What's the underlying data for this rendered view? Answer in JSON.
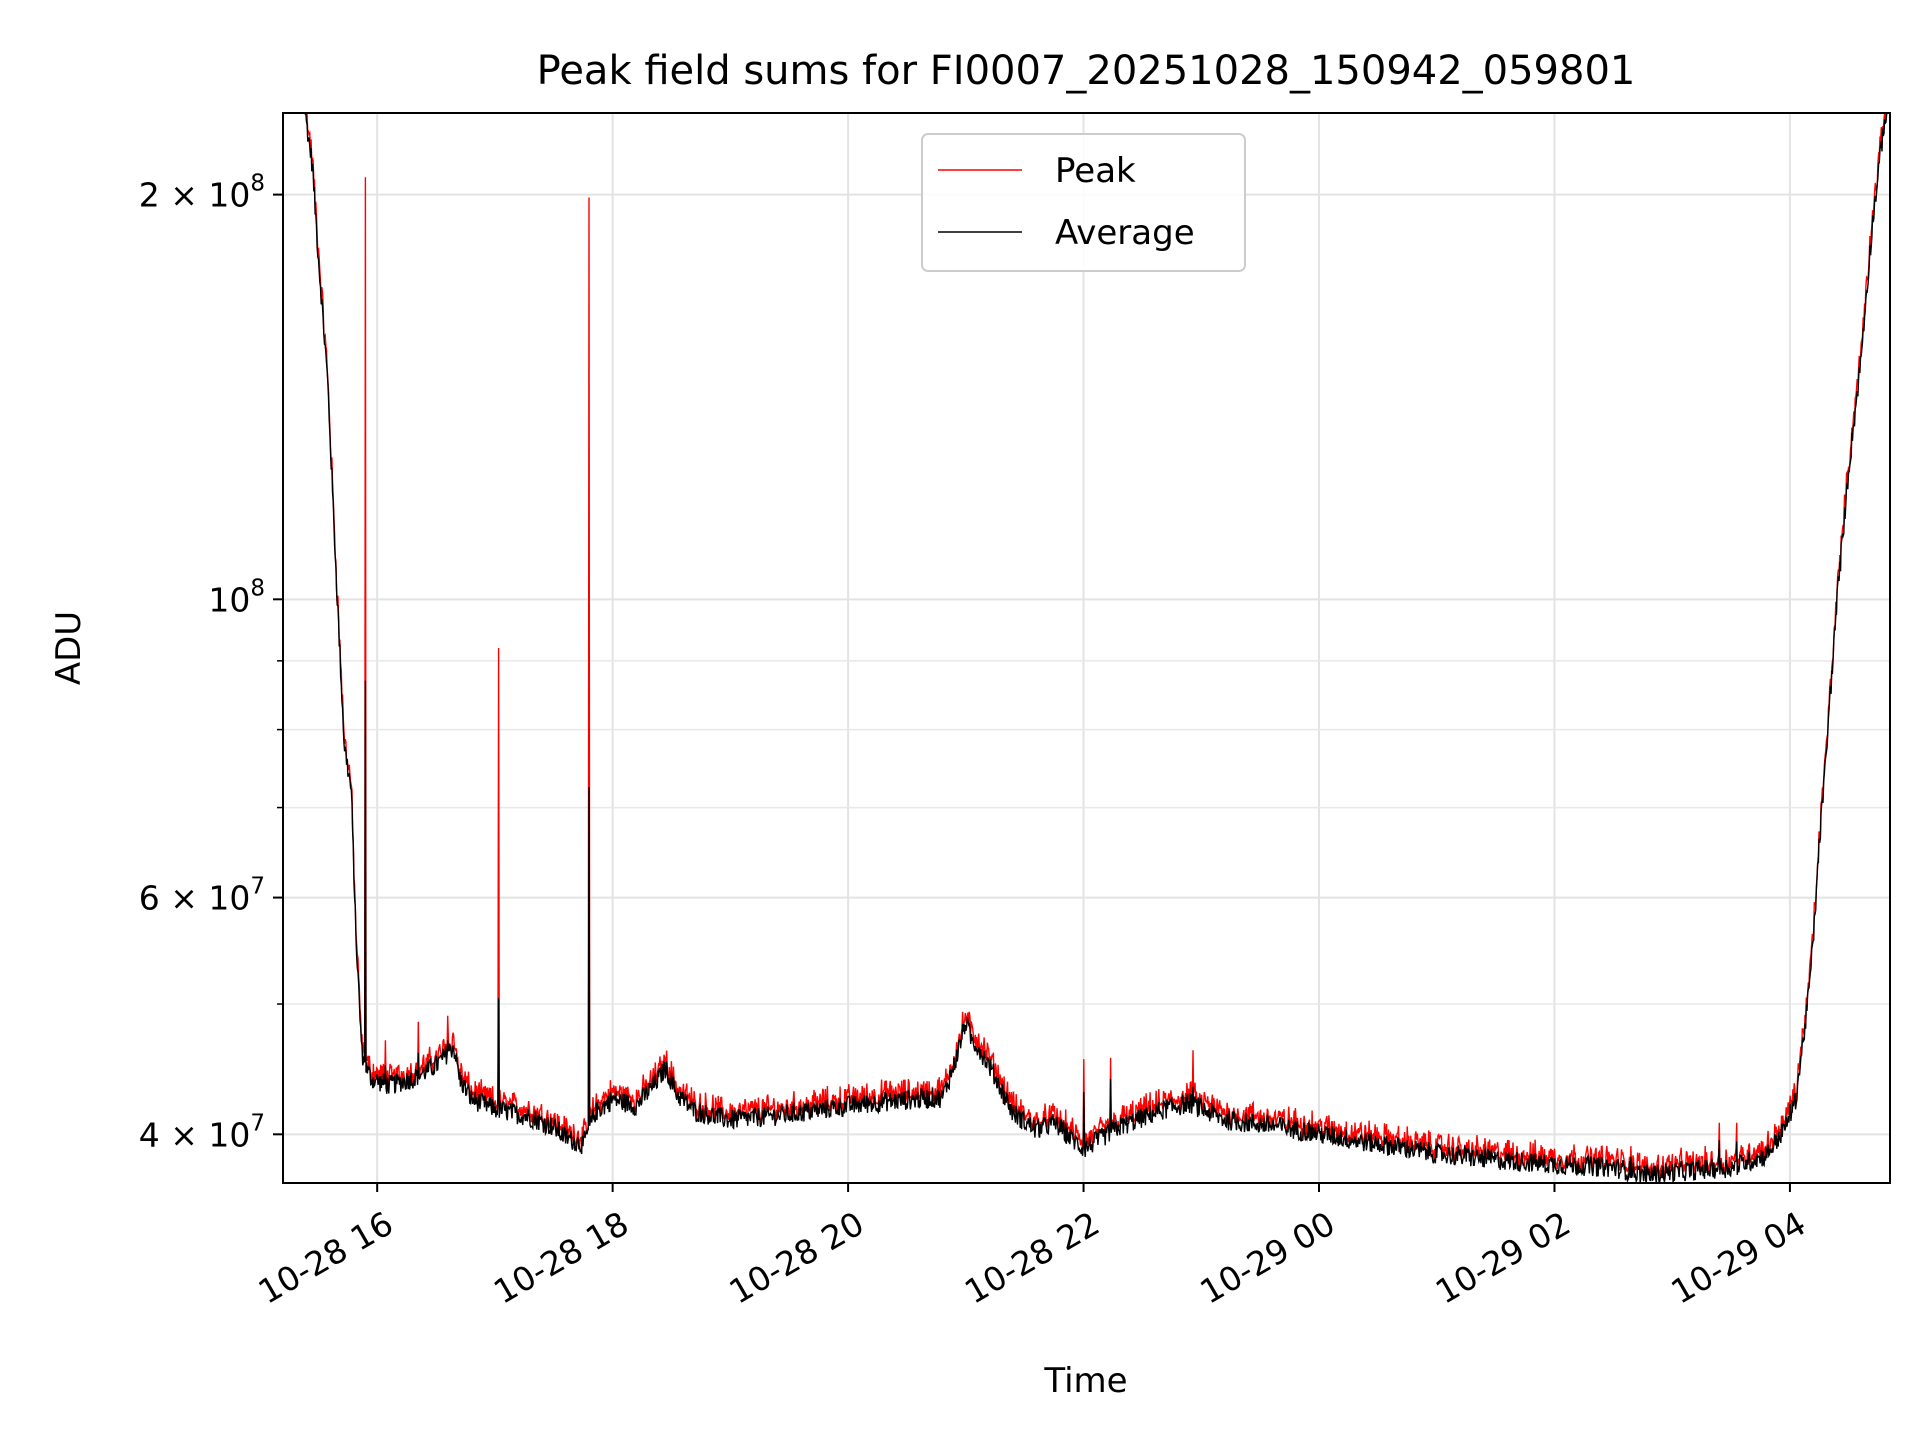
{
  "chart_data": {
    "type": "line",
    "title": "Peak field sums for FI0007_20251028_150942_059801",
    "xlabel": "Time",
    "ylabel": "ADU",
    "yscale": "log",
    "grid": true,
    "legend_position": "upper-center",
    "xlim_hours": [
      15.2,
      28.85
    ],
    "ylim": [
      36800000,
      230000000
    ],
    "x_ticks": [
      {
        "hour": 16,
        "label": "10-28 16"
      },
      {
        "hour": 18,
        "label": "10-28 18"
      },
      {
        "hour": 20,
        "label": "10-28 20"
      },
      {
        "hour": 22,
        "label": "10-28 22"
      },
      {
        "hour": 24,
        "label": "10-29 00"
      },
      {
        "hour": 26,
        "label": "10-29 02"
      },
      {
        "hour": 28,
        "label": "10-29 04"
      }
    ],
    "y_ticks": [
      {
        "value": 40000000,
        "base": "4 × 10",
        "exp": "7"
      },
      {
        "value": 60000000,
        "base": "6 × 10",
        "exp": "7"
      },
      {
        "value": 100000000,
        "base": "10",
        "exp": "8"
      },
      {
        "value": 200000000,
        "base": "2 × 10",
        "exp": "8"
      }
    ],
    "y_minor_ticks": [
      50000000,
      70000000,
      80000000,
      90000000
    ],
    "series": [
      {
        "name": "Peak",
        "color": "#ff0000"
      },
      {
        "name": "Average",
        "color": "#000000"
      }
    ],
    "baseline_hours": [
      15.2,
      15.38,
      15.45,
      15.5,
      15.58,
      15.65,
      15.72,
      15.78,
      15.82,
      15.87,
      15.9,
      15.95,
      16.1,
      16.3,
      16.5,
      16.65,
      16.7,
      16.8,
      17.0,
      17.3,
      17.5,
      17.6,
      17.75,
      17.85,
      18.0,
      18.2,
      18.35,
      18.45,
      18.55,
      18.7,
      19.0,
      19.5,
      20.0,
      20.3,
      20.6,
      20.8,
      20.9,
      21.0,
      21.05,
      21.1,
      21.2,
      21.4,
      21.6,
      21.75,
      22.0,
      22.3,
      22.7,
      22.9,
      23.2,
      23.6,
      23.9,
      24.3,
      24.7,
      25.0,
      25.5,
      26.0,
      26.5,
      26.8,
      27.0,
      27.5,
      27.8,
      27.95,
      28.05,
      28.1,
      28.15,
      28.2,
      28.25,
      28.3,
      28.4,
      28.5,
      28.6,
      28.7,
      28.8,
      28.85
    ],
    "baseline_average": [
      235000000,
      233000000,
      210000000,
      180000000,
      145000000,
      105000000,
      78000000,
      72000000,
      56000000,
      46000000,
      45000000,
      44000000,
      43500000,
      44000000,
      45000000,
      46500000,
      44000000,
      42500000,
      41800000,
      41200000,
      40500000,
      39800000,
      39300000,
      41500000,
      42500000,
      42000000,
      43500000,
      44800000,
      42800000,
      41600000,
      41000000,
      41400000,
      42000000,
      42300000,
      42500000,
      42600000,
      45000000,
      48500000,
      47000000,
      46500000,
      45000000,
      41500000,
      40300000,
      40800000,
      39000000,
      40500000,
      41800000,
      42200000,
      41000000,
      40600000,
      40200000,
      39600000,
      39100000,
      38700000,
      38300000,
      38000000,
      37800000,
      37300000,
      37500000,
      37800000,
      38600000,
      40300000,
      42500000,
      46000000,
      50000000,
      56000000,
      66000000,
      75000000,
      100000000,
      125000000,
      150000000,
      190000000,
      226000000,
      235000000
    ],
    "peak_spikes": [
      {
        "hour": 15.9,
        "peak": 206000000,
        "average": 87000000
      },
      {
        "hour": 16.07,
        "peak": 47000000,
        "average": 45000000
      },
      {
        "hour": 16.35,
        "peak": 48500000,
        "average": 46000000
      },
      {
        "hour": 16.6,
        "peak": 49000000,
        "average": 47000000
      },
      {
        "hour": 17.03,
        "peak": 92000000,
        "average": 50500000
      },
      {
        "hour": 17.8,
        "peak": 199000000,
        "average": 72500000
      },
      {
        "hour": 22.0,
        "peak": 45500000,
        "average": 43000000
      },
      {
        "hour": 22.23,
        "peak": 45600000,
        "average": 44000000
      },
      {
        "hour": 22.93,
        "peak": 46200000,
        "average": 43400000
      },
      {
        "hour": 26.65,
        "peak": 39200000,
        "average": 38500000
      },
      {
        "hour": 27.4,
        "peak": 40800000,
        "average": 39600000
      },
      {
        "hour": 27.55,
        "peak": 40800000,
        "average": 39500000
      }
    ]
  }
}
